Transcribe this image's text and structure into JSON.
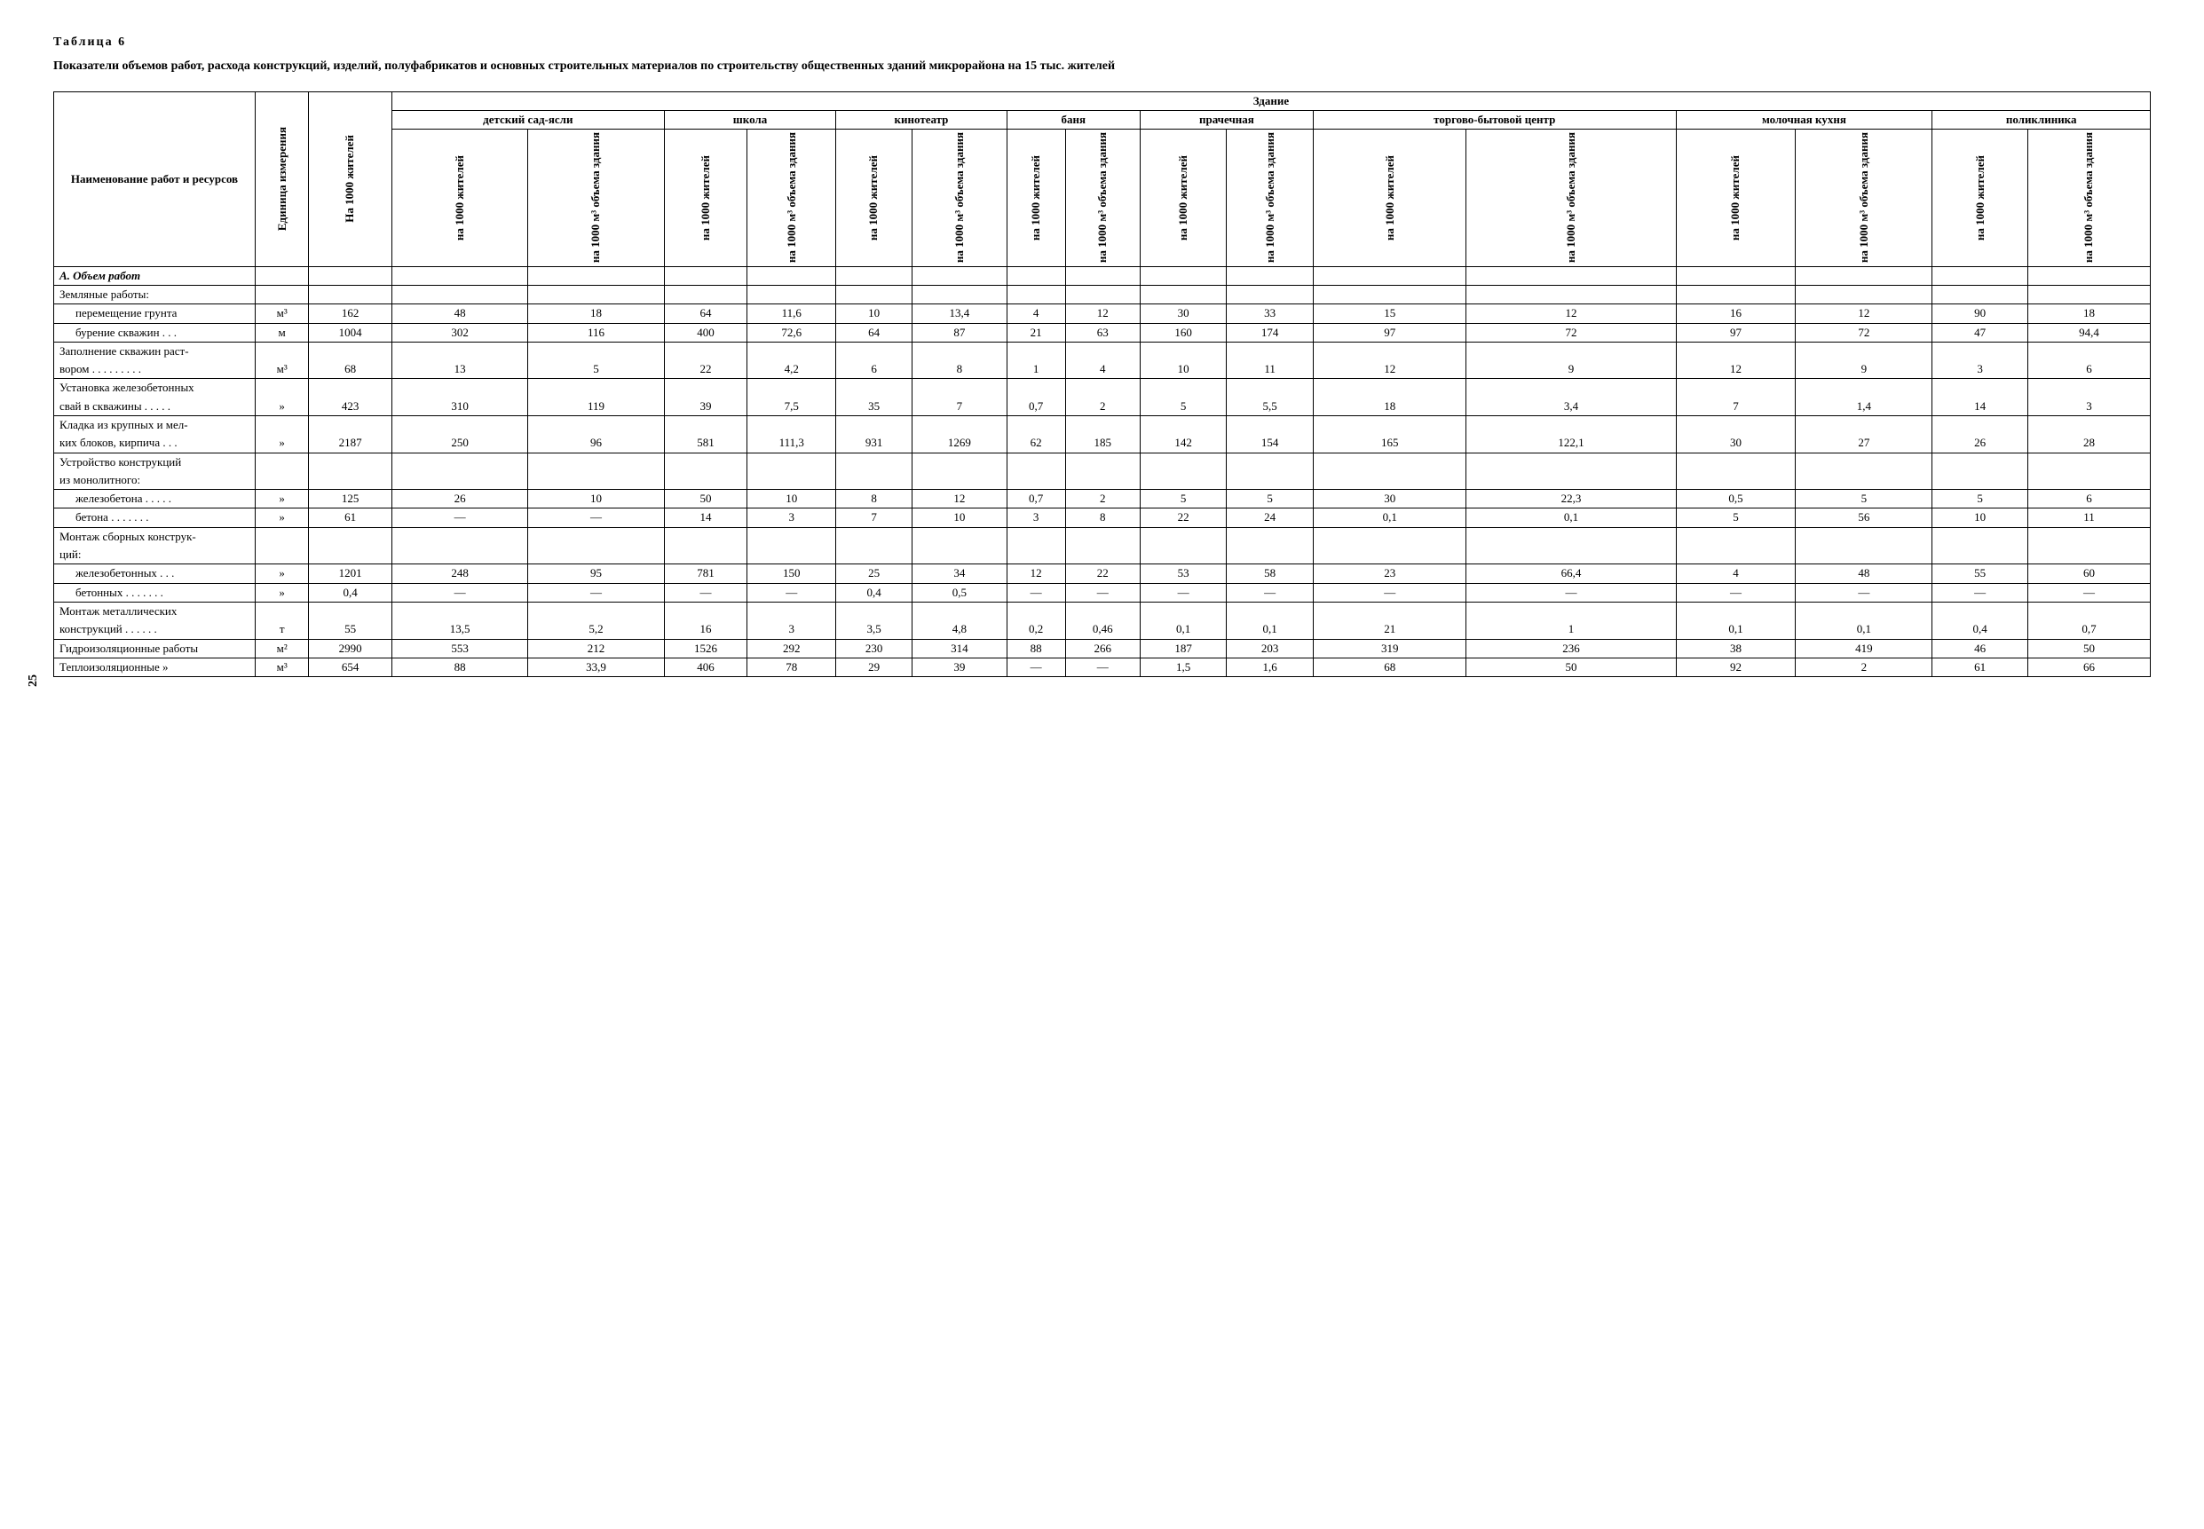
{
  "page_number": "25",
  "table_label": "Таблица  6",
  "title": "Показатели объемов работ, расхода конструкций, изделий, полуфабрикатов и основных строительных материалов по строительству общественных зданий микрорайона на 15 тыс. жителей",
  "header": {
    "name": "Наименование работ и ресурсов",
    "unit": "Единица измерения",
    "per_1000": "На 1000 жителей",
    "building_group": "Здание",
    "buildings": [
      "детский сад-ясли",
      "школа",
      "кинотеатр",
      "баня",
      "прачечная",
      "торгово-бытовой центр",
      "молочная кухня",
      "поликлиника"
    ],
    "subcol_a": "на 1000 жителей",
    "subcol_b": "на 1000 м³ объема здания"
  },
  "section_a": "А. Объем работ",
  "rows": [
    {
      "name": "Земляные работы:",
      "unit": "",
      "total": "",
      "v": [
        "",
        "",
        "",
        "",
        "",
        "",
        "",
        "",
        "",
        "",
        "",
        "",
        "",
        "",
        "",
        ""
      ]
    },
    {
      "name": "перемещение грунта",
      "indent": true,
      "unit": "м³",
      "total": "162",
      "v": [
        "48",
        "18",
        "64",
        "11,6",
        "10",
        "13,4",
        "4",
        "12",
        "30",
        "33",
        "15",
        "12",
        "16",
        "12",
        "90",
        "18"
      ]
    },
    {
      "name": "бурение скважин . . .",
      "indent": true,
      "unit": "м",
      "total": "1004",
      "v": [
        "302",
        "116",
        "400",
        "72,6",
        "64",
        "87",
        "21",
        "63",
        "160",
        "174",
        "97",
        "72",
        "97",
        "72",
        "47",
        "94,4"
      ]
    },
    {
      "name": "Заполнение скважин раст-",
      "unit": "",
      "total": "",
      "v": [
        "",
        "",
        "",
        "",
        "",
        "",
        "",
        "",
        "",
        "",
        "",
        "",
        "",
        "",
        "",
        ""
      ],
      "cont": true
    },
    {
      "name": "вором . . . . . . . . .",
      "unit": "м³",
      "total": "68",
      "v": [
        "13",
        "5",
        "22",
        "4,2",
        "6",
        "8",
        "1",
        "4",
        "10",
        "11",
        "12",
        "9",
        "12",
        "9",
        "3",
        "6"
      ]
    },
    {
      "name": "Установка железобетонных",
      "unit": "",
      "total": "",
      "v": [
        "",
        "",
        "",
        "",
        "",
        "",
        "",
        "",
        "",
        "",
        "",
        "",
        "",
        "",
        "",
        ""
      ],
      "cont": true
    },
    {
      "name": "свай в скважины . . . . .",
      "unit": "»",
      "total": "423",
      "v": [
        "310",
        "119",
        "39",
        "7,5",
        "35",
        "7",
        "0,7",
        "2",
        "5",
        "5,5",
        "18",
        "3,4",
        "7",
        "1,4",
        "14",
        "3"
      ]
    },
    {
      "name": "Кладка из крупных и мел-",
      "unit": "",
      "total": "",
      "v": [
        "",
        "",
        "",
        "",
        "",
        "",
        "",
        "",
        "",
        "",
        "",
        "",
        "",
        "",
        "",
        ""
      ],
      "cont": true
    },
    {
      "name": "ких блоков, кирпича . . .",
      "unit": "»",
      "total": "2187",
      "v": [
        "250",
        "96",
        "581",
        "111,3",
        "931",
        "1269",
        "62",
        "185",
        "142",
        "154",
        "165",
        "122,1",
        "30",
        "27",
        "26",
        "28"
      ]
    },
    {
      "name": "Устройство конструкций",
      "unit": "",
      "total": "",
      "v": [
        "",
        "",
        "",
        "",
        "",
        "",
        "",
        "",
        "",
        "",
        "",
        "",
        "",
        "",
        "",
        ""
      ],
      "cont": true
    },
    {
      "name": "из монолитного:",
      "unit": "",
      "total": "",
      "v": [
        "",
        "",
        "",
        "",
        "",
        "",
        "",
        "",
        "",
        "",
        "",
        "",
        "",
        "",
        "",
        ""
      ]
    },
    {
      "name": "железобетона . . . . .",
      "indent": true,
      "unit": "»",
      "total": "125",
      "v": [
        "26",
        "10",
        "50",
        "10",
        "8",
        "12",
        "0,7",
        "2",
        "5",
        "5",
        "30",
        "22,3",
        "0,5",
        "5",
        "5",
        "6"
      ]
    },
    {
      "name": "бетона  . . . . . . .",
      "indent": true,
      "unit": "»",
      "total": "61",
      "v": [
        "—",
        "—",
        "14",
        "3",
        "7",
        "10",
        "3",
        "8",
        "22",
        "24",
        "0,1",
        "0,1",
        "5",
        "56",
        "10",
        "11"
      ]
    },
    {
      "name": "Монтаж сборных конструк-",
      "unit": "",
      "total": "",
      "v": [
        "",
        "",
        "",
        "",
        "",
        "",
        "",
        "",
        "",
        "",
        "",
        "",
        "",
        "",
        "",
        ""
      ],
      "cont": true
    },
    {
      "name": "ций:",
      "unit": "",
      "total": "",
      "v": [
        "",
        "",
        "",
        "",
        "",
        "",
        "",
        "",
        "",
        "",
        "",
        "",
        "",
        "",
        "",
        ""
      ]
    },
    {
      "name": "железобетонных  . . .",
      "indent": true,
      "unit": "»",
      "total": "1201",
      "v": [
        "248",
        "95",
        "781",
        "150",
        "25",
        "34",
        "12",
        "22",
        "53",
        "58",
        "23",
        "66,4",
        "4",
        "48",
        "55",
        "60"
      ]
    },
    {
      "name": "бетонных . . . . . . .",
      "indent": true,
      "unit": "»",
      "total": "0,4",
      "v": [
        "—",
        "—",
        "—",
        "—",
        "0,4",
        "0,5",
        "—",
        "—",
        "—",
        "—",
        "—",
        "—",
        "—",
        "—",
        "—",
        "—"
      ]
    },
    {
      "name": "Монтаж металлических",
      "unit": "",
      "total": "",
      "v": [
        "",
        "",
        "",
        "",
        "",
        "",
        "",
        "",
        "",
        "",
        "",
        "",
        "",
        "",
        "",
        ""
      ],
      "cont": true
    },
    {
      "name": "конструкций  . . . . . .",
      "unit": "т",
      "total": "55",
      "v": [
        "13,5",
        "5,2",
        "16",
        "3",
        "3,5",
        "4,8",
        "0,2",
        "0,46",
        "0,1",
        "0,1",
        "21",
        "1",
        "0,1",
        "0,1",
        "0,4",
        "0,7"
      ]
    },
    {
      "name": "Гидроизоляционные работы",
      "unit": "м²",
      "total": "2990",
      "v": [
        "553",
        "212",
        "1526",
        "292",
        "230",
        "314",
        "88",
        "266",
        "187",
        "203",
        "319",
        "236",
        "38",
        "419",
        "46",
        "50"
      ]
    },
    {
      "name": "Теплоизоляционные       »",
      "unit": "м³",
      "total": "654",
      "v": [
        "88",
        "33,9",
        "406",
        "78",
        "29",
        "39",
        "—",
        "—",
        "1,5",
        "1,6",
        "68",
        "50",
        "92",
        "2",
        "61",
        "66"
      ]
    }
  ]
}
